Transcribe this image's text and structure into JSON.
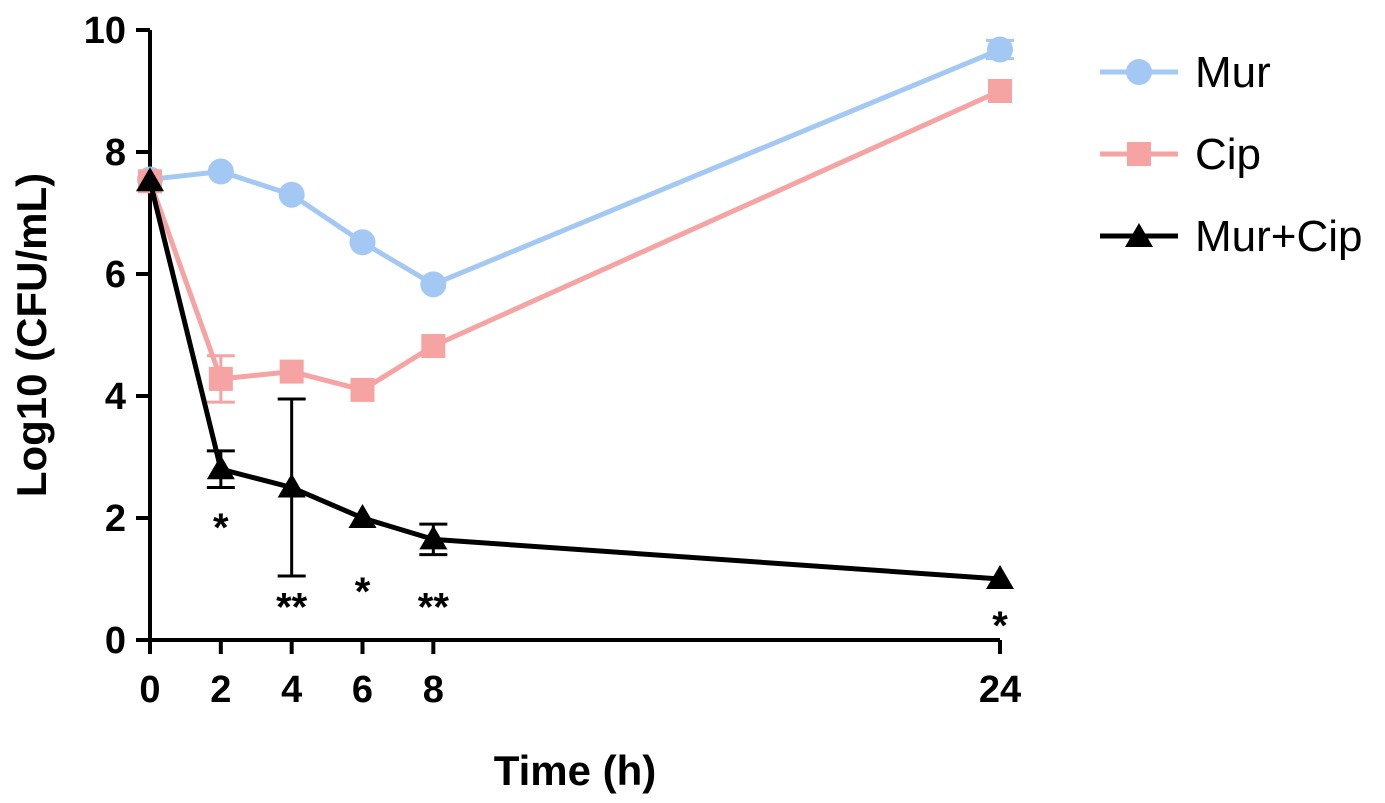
{
  "chart_data": {
    "type": "line",
    "title": "",
    "xlabel": "Time (h)",
    "ylabel": "Log10 (CFU/mL)",
    "x": [
      0,
      2,
      4,
      6,
      8,
      24
    ],
    "xticks": [
      0,
      2,
      4,
      6,
      8,
      24
    ],
    "xtick_labels": [
      "0",
      "2",
      "4",
      "6",
      "8",
      "24"
    ],
    "yticks": [
      0,
      2,
      4,
      6,
      8,
      10
    ],
    "ytick_labels": [
      "0",
      "2",
      "4",
      "6",
      "8",
      "10"
    ],
    "xlim": [
      0,
      24
    ],
    "ylim": [
      0,
      10
    ],
    "grid": false,
    "legend_position": "right",
    "series": [
      {
        "name": "Mur",
        "color": "#a4c8f4",
        "marker": "circle",
        "values": [
          7.55,
          7.68,
          7.3,
          6.52,
          5.83,
          9.68
        ],
        "errors": [
          0.05,
          0.05,
          0.05,
          0.05,
          0.05,
          0.15
        ]
      },
      {
        "name": "Cip",
        "color": "#f5a3a3",
        "marker": "square",
        "values": [
          7.52,
          4.28,
          4.4,
          4.1,
          4.82,
          9.0
        ],
        "errors": [
          0.05,
          0.38,
          0.08,
          0.05,
          0.05,
          0.05
        ]
      },
      {
        "name": "Mur+Cip",
        "color": "#000000",
        "marker": "triangle",
        "values": [
          7.52,
          2.8,
          2.5,
          2.0,
          1.65,
          1.0
        ],
        "errors": [
          0.05,
          0.3,
          1.45,
          0.05,
          0.25,
          0.0
        ]
      }
    ],
    "annotations": [
      {
        "x": 2,
        "y": 1.85,
        "text": "*"
      },
      {
        "x": 4,
        "y": 0.55,
        "text": "**"
      },
      {
        "x": 6,
        "y": 0.8,
        "text": "*"
      },
      {
        "x": 8,
        "y": 0.55,
        "text": "**"
      },
      {
        "x": 24,
        "y": 0.25,
        "text": "*"
      }
    ]
  }
}
